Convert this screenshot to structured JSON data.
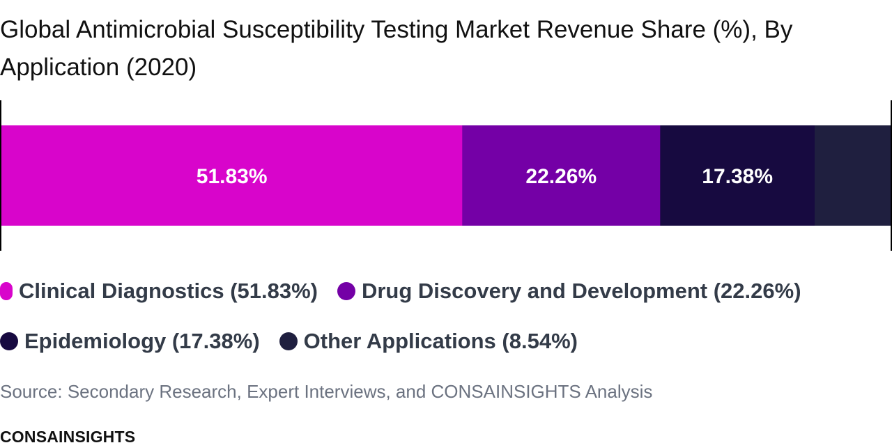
{
  "chart_data": {
    "type": "bar",
    "orientation": "horizontal-stacked",
    "title": "Global Antimicrobial Susceptibility Testing Market Revenue Share (%), By Application (2020)",
    "categories": [
      "Clinical Diagnostics",
      "Drug Discovery and Development",
      "Epidemiology",
      "Other Applications"
    ],
    "values": [
      51.83,
      22.26,
      17.38,
      8.54
    ],
    "unit": "%",
    "bar_labels": [
      "51.83%",
      "22.26%",
      "17.38%",
      ""
    ],
    "colors": [
      "#d805cb",
      "#7400a6",
      "#170a40",
      "#1f1f3f"
    ],
    "legend_entries": [
      "Clinical Diagnostics (51.83%)",
      "Drug Discovery and Development (22.26%)",
      "Epidemiology (17.38%)",
      "Other Applications (8.54%)"
    ],
    "legend_placement": "bottom",
    "grid": false
  },
  "source": "Source: Secondary Research, Expert Interviews, and CONSAINSIGHTS Analysis",
  "brand": "CONSAINSIGHTS"
}
